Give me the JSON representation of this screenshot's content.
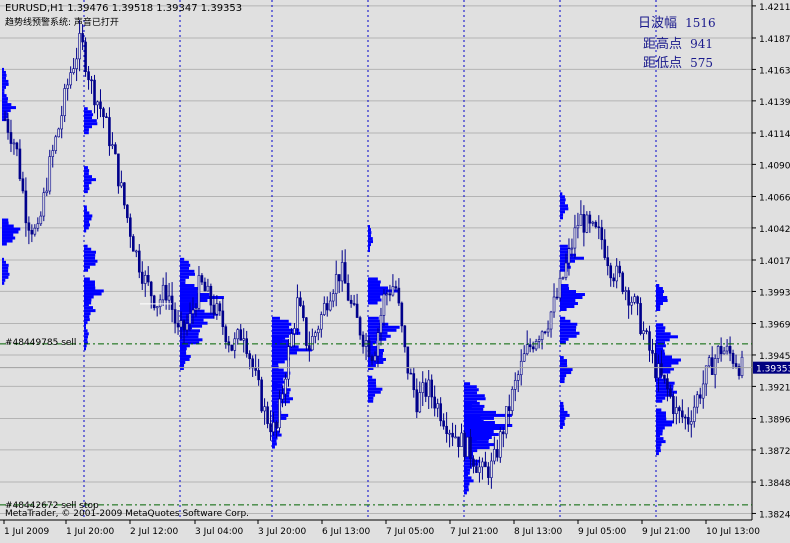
{
  "header": {
    "symbol_line": "EURUSD,H1  1.39476 1.39518 1.39347 1.39353",
    "indicator_name": "趋势线预警系统: 声音已打开"
  },
  "stats": [
    {
      "label": "日波幅",
      "value": "1516"
    },
    {
      "label": "距高点",
      "value": "941"
    },
    {
      "label": "距低点",
      "value": "575"
    }
  ],
  "orders": [
    {
      "label": "#48449785 sell",
      "price": 1.39535
    },
    {
      "label": "#48442672 sell stop",
      "price": 1.38305
    }
  ],
  "copyright": "MetaTrader, © 2001-2009 MetaQuotes Software Corp.",
  "current_price": "1.39353",
  "colors": {
    "background": "#e0e0e0",
    "candles": "#00008b",
    "volume_profile": "#0000ff",
    "period_separator": "#0000cd",
    "order_line": "#006400",
    "price_tag_bg": "#000080"
  },
  "chart_data": {
    "type": "candlestick",
    "symbol": "EURUSD",
    "timeframe": "H1",
    "ylim": [
      1.3819,
      1.4216
    ],
    "y_ticks": [
      "1.42115",
      "1.41870",
      "1.41630",
      "1.41390",
      "1.41145",
      "1.40905",
      "1.40660",
      "1.40420",
      "1.40175",
      "1.39935",
      "1.39690",
      "1.39450",
      "1.39210",
      "1.38965",
      "1.38725",
      "1.38480",
      "1.38240"
    ],
    "x_ticks": [
      "1 Jul 2009",
      "1 Jul 20:00",
      "2 Jul 12:00",
      "3 Jul 04:00",
      "3 Jul 20:00",
      "6 Jul 13:00",
      "7 Jul 05:00",
      "7 Jul 21:00",
      "8 Jul 13:00",
      "9 Jul 05:00",
      "9 Jul 21:00",
      "10 Jul 13:00"
    ],
    "grid": true,
    "price_path": [
      1.4125,
      1.4105,
      1.405,
      1.4035,
      1.4085,
      1.412,
      1.416,
      1.4185,
      1.415,
      1.413,
      1.41,
      1.406,
      1.4025,
      1.4,
      1.3985,
      1.3995,
      1.396,
      1.397,
      1.4,
      1.3985,
      1.397,
      1.395,
      1.3965,
      1.393,
      1.39,
      1.3885,
      1.394,
      1.3985,
      1.395,
      1.397,
      1.3995,
      1.401,
      1.398,
      1.396,
      1.3945,
      1.399,
      1.4,
      1.394,
      1.391,
      1.392,
      1.3905,
      1.389,
      1.388,
      1.387,
      1.3855,
      1.386,
      1.389,
      1.392,
      1.3945,
      1.396,
      1.397,
      1.399,
      1.402,
      1.405,
      1.404,
      1.4035,
      1.401,
      1.4,
      1.3985,
      1.396,
      1.3935,
      1.392,
      1.39,
      1.3895,
      1.3915,
      1.3935,
      1.395,
      1.3945,
      1.3935
    ],
    "profiles": [
      {
        "x0": 2,
        "levels": [
          [
            1.4155,
            8
          ],
          [
            1.4135,
            14
          ],
          [
            1.404,
            22
          ],
          [
            1.401,
            10
          ]
        ]
      },
      {
        "x0": 84,
        "levels": [
          [
            1.4125,
            16
          ],
          [
            1.408,
            12
          ],
          [
            1.405,
            10
          ],
          [
            1.402,
            18
          ],
          [
            1.3995,
            22
          ],
          [
            1.398,
            12
          ],
          [
            1.396,
            6
          ]
        ]
      },
      {
        "x0": 180,
        "levels": [
          [
            1.401,
            18
          ],
          [
            1.399,
            44
          ],
          [
            1.3975,
            46
          ],
          [
            1.396,
            30
          ],
          [
            1.3945,
            12
          ]
        ]
      },
      {
        "x0": 272,
        "levels": [
          [
            1.3965,
            34
          ],
          [
            1.395,
            40
          ],
          [
            1.393,
            22
          ],
          [
            1.3915,
            28
          ],
          [
            1.39,
            18
          ],
          [
            1.3885,
            10
          ]
        ]
      },
      {
        "x0": 368,
        "levels": [
          [
            1.4035,
            6
          ],
          [
            1.3995,
            30
          ],
          [
            1.3965,
            38
          ],
          [
            1.3945,
            24
          ],
          [
            1.392,
            16
          ]
        ]
      },
      {
        "x0": 464,
        "levels": [
          [
            1.3915,
            26
          ],
          [
            1.39,
            48
          ],
          [
            1.389,
            58
          ],
          [
            1.388,
            40
          ],
          [
            1.3865,
            18
          ],
          [
            1.385,
            10
          ]
        ]
      },
      {
        "x0": 560,
        "levels": [
          [
            1.406,
            10
          ],
          [
            1.402,
            24
          ],
          [
            1.399,
            30
          ],
          [
            1.3965,
            26
          ],
          [
            1.3935,
            14
          ],
          [
            1.39,
            10
          ]
        ]
      },
      {
        "x0": 656,
        "levels": [
          [
            1.399,
            14
          ],
          [
            1.396,
            22
          ],
          [
            1.394,
            30
          ],
          [
            1.392,
            28
          ],
          [
            1.3895,
            20
          ],
          [
            1.388,
            10
          ]
        ]
      }
    ]
  }
}
